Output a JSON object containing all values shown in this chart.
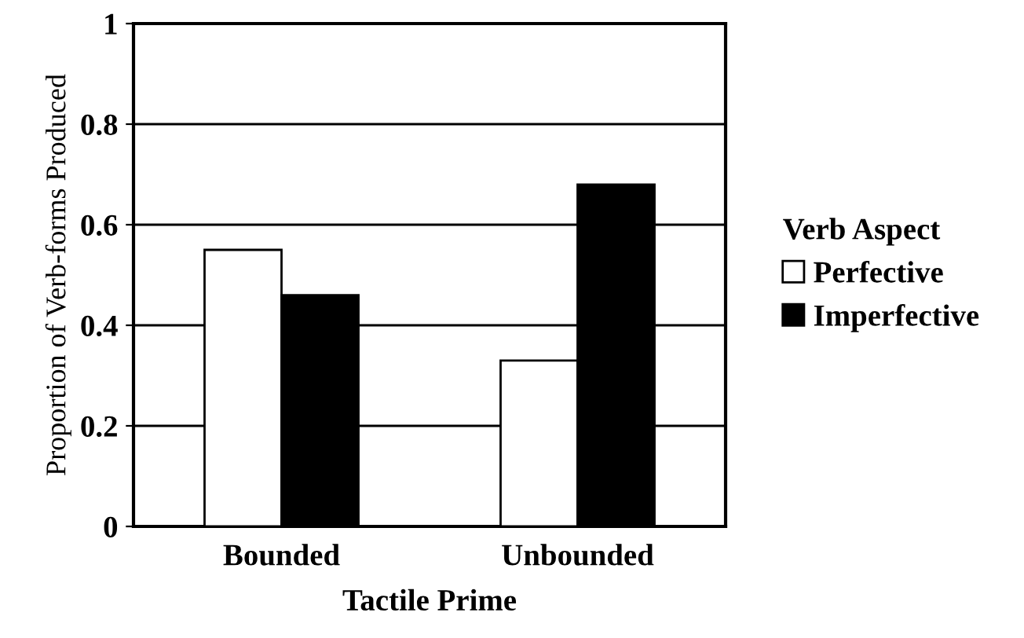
{
  "chart_data": {
    "type": "bar",
    "xlabel": "Tactile Prime",
    "ylabel": "Proportion of Verb-forms Produced",
    "legend_title": "Verb Aspect",
    "categories": [
      "Bounded",
      "Unbounded"
    ],
    "series": [
      {
        "name": "Perfective",
        "color": "#ffffff",
        "values": [
          0.55,
          0.33
        ]
      },
      {
        "name": "Imperfective",
        "color": "#000000",
        "values": [
          0.46,
          0.68
        ]
      }
    ],
    "ylim": [
      0,
      1
    ],
    "yticks": [
      0,
      0.2,
      0.4,
      0.6,
      0.8,
      1
    ],
    "grid": "y",
    "legend": "right"
  }
}
